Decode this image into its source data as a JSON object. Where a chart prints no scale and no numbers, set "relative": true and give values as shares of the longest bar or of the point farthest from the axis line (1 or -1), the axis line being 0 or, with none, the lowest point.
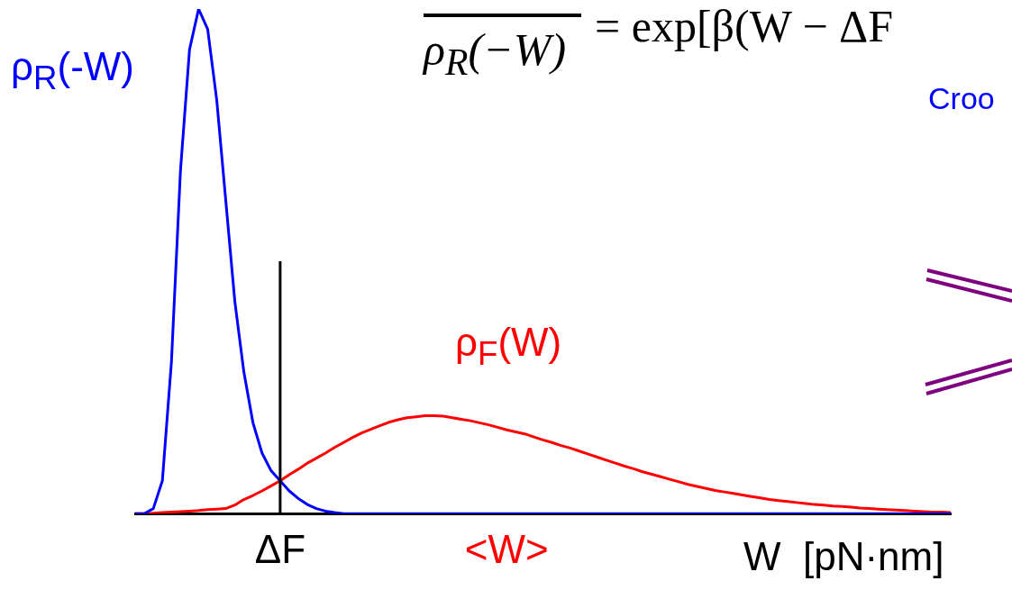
{
  "chart_data": {
    "type": "line",
    "relative": true,
    "xlabel": "W  [pN·nm]",
    "legend": false,
    "marker": "none",
    "line_style": "solid",
    "categories": [
      null,
      null,
      null,
      null,
      null,
      null,
      null,
      null,
      null,
      null,
      null,
      null,
      null,
      null,
      null,
      null,
      "ΔF",
      null,
      null,
      null,
      null,
      null,
      null,
      null,
      null,
      null,
      null,
      null,
      null,
      null,
      null,
      null,
      null,
      null,
      null,
      null,
      null,
      null,
      null,
      null,
      null,
      "<W>",
      null,
      null,
      null,
      null,
      null,
      null,
      null,
      null,
      null,
      null,
      null,
      null,
      null,
      null,
      null,
      null,
      null,
      null,
      null,
      null,
      null,
      null,
      null,
      null,
      null,
      null,
      null,
      null,
      null,
      null,
      null,
      null,
      null,
      null,
      null,
      null,
      null,
      null,
      null,
      null,
      null,
      null,
      null,
      null,
      null,
      null,
      null,
      null,
      null
    ],
    "series": [
      {
        "name": "ρ$_{R}$(-W)",
        "color": "#0000ff",
        "values": [
          0,
          0,
          0.01,
          0.065,
          0.3,
          0.68,
          0.92,
          1,
          0.96,
          0.82,
          0.62,
          0.42,
          0.28,
          0.18,
          0.12,
          0.085,
          0.065,
          0.045,
          0.03,
          0.018,
          0.01,
          0.005,
          0.002,
          0,
          0,
          0,
          0,
          0,
          0,
          0,
          0,
          0,
          0,
          0,
          0,
          0,
          0,
          0,
          0,
          0,
          0,
          0,
          0,
          0,
          0,
          0,
          0,
          0,
          0,
          0,
          0,
          0,
          0,
          0,
          0,
          0,
          0,
          0,
          0,
          0,
          0,
          0,
          0,
          0,
          0,
          0,
          0,
          0,
          0,
          0,
          0,
          0,
          0,
          0,
          0,
          0,
          0,
          0,
          0,
          0,
          0,
          0,
          0,
          0,
          0,
          0,
          0,
          0,
          0,
          0,
          0
        ]
      },
      {
        "name": "ρ$_{F}$(W)",
        "color": "#ff0000",
        "values": [
          0,
          0,
          0.001,
          0.002,
          0.003,
          0.004,
          0.005,
          0.006,
          0.008,
          0.009,
          0.01,
          0.017,
          0.028,
          0.036,
          0.045,
          0.055,
          0.065,
          0.077,
          0.088,
          0.1,
          0.11,
          0.12,
          0.131,
          0.141,
          0.151,
          0.16,
          0.167,
          0.174,
          0.181,
          0.186,
          0.19,
          0.192,
          0.194,
          0.194,
          0.193,
          0.19,
          0.187,
          0.184,
          0.18,
          0.176,
          0.171,
          0.166,
          0.162,
          0.158,
          0.152,
          0.146,
          0.141,
          0.135,
          0.13,
          0.124,
          0.118,
          0.112,
          0.106,
          0.1,
          0.094,
          0.089,
          0.083,
          0.078,
          0.073,
          0.068,
          0.063,
          0.058,
          0.054,
          0.05,
          0.046,
          0.043,
          0.04,
          0.037,
          0.034,
          0.031,
          0.028,
          0.026,
          0.024,
          0.022,
          0.02,
          0.018,
          0.017,
          0.015,
          0.014,
          0.013,
          0.011,
          0.01,
          0.009,
          0.008,
          0.007,
          0.006,
          0.005,
          0.004,
          0.003,
          0.003,
          0.002
        ]
      }
    ],
    "ref_lines": [
      {
        "axis": "x",
        "value": "ΔF",
        "color": "#000000"
      }
    ],
    "annotations": [
      "ρ$_{R}$(−W)",
      "= exp[β(W − ΔF",
      "Croo"
    ]
  }
}
